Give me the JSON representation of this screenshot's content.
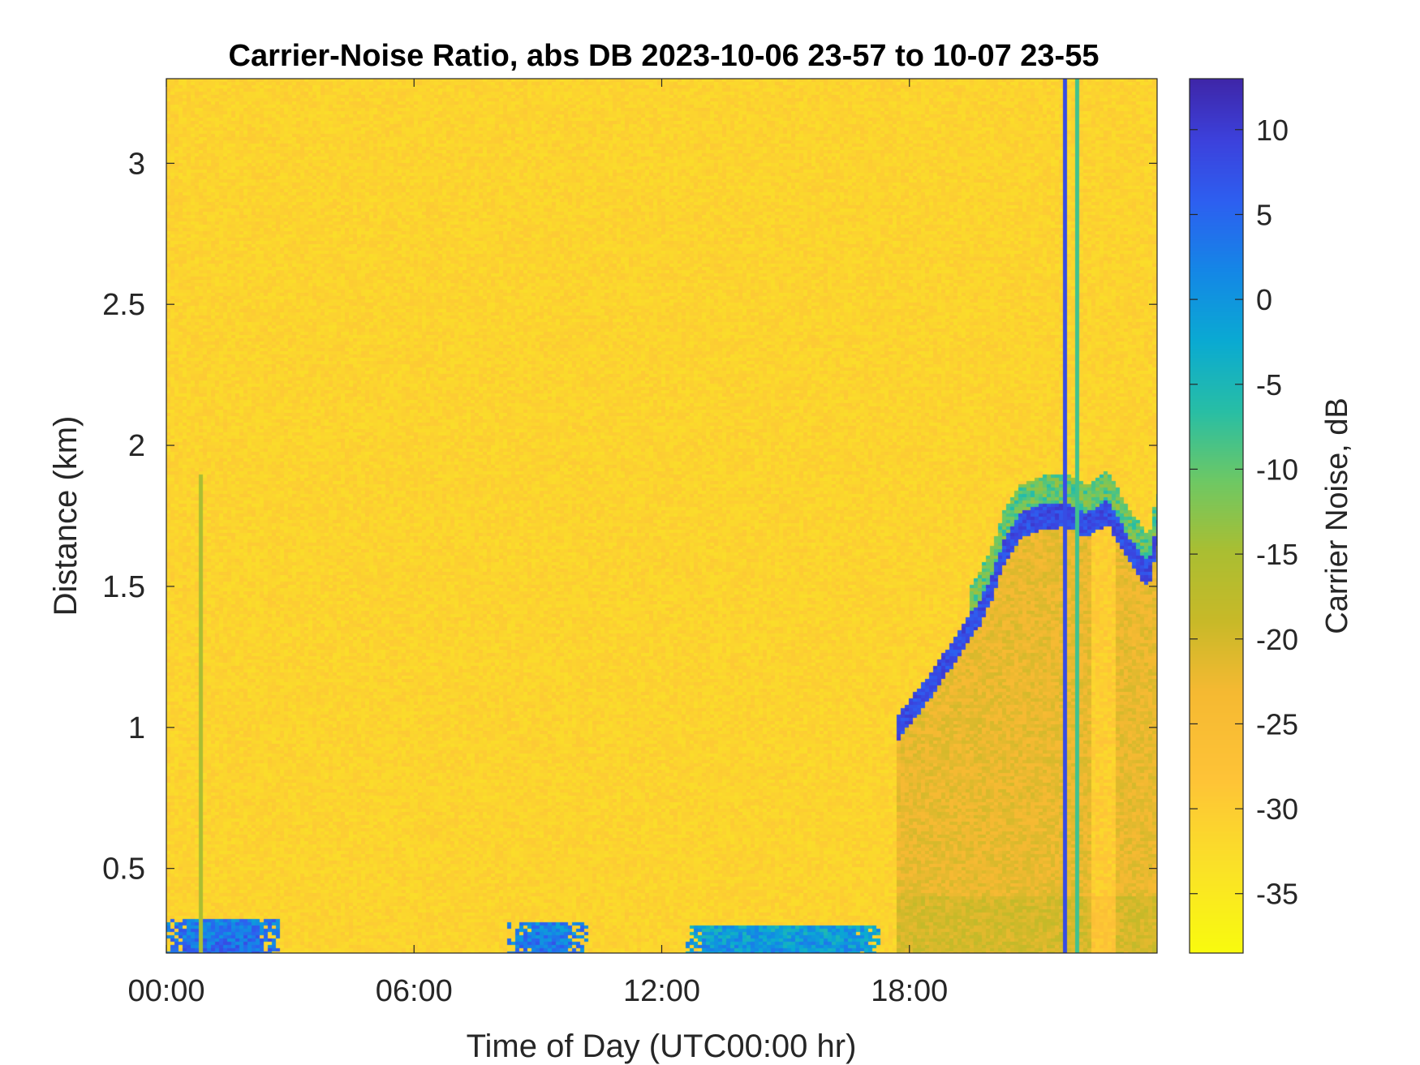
{
  "chart_data": {
    "type": "heatmap",
    "title": "Carrier-Noise Ratio, abs DB 2023-10-06 23-57 to 10-07 23-55",
    "xlabel": "Time of Day (UTC00:00 hr)",
    "ylabel": "Distance (km)",
    "colorbar_label": "Carrier Noise, dB",
    "xlim_hours": [
      0,
      24
    ],
    "ylim_km": [
      0.2,
      3.3
    ],
    "clim_db": [
      -38.5,
      13
    ],
    "x_ticks": [
      {
        "hour": 0,
        "label": "00:00"
      },
      {
        "hour": 6,
        "label": "06:00"
      },
      {
        "hour": 12,
        "label": "12:00"
      },
      {
        "hour": 18,
        "label": "18:00"
      }
    ],
    "y_ticks": [
      {
        "km": 0.5,
        "label": "0.5"
      },
      {
        "km": 1,
        "label": "1"
      },
      {
        "km": 1.5,
        "label": "1.5"
      },
      {
        "km": 2,
        "label": "2"
      },
      {
        "km": 2.5,
        "label": "2.5"
      },
      {
        "km": 3,
        "label": "3"
      }
    ],
    "colorbar_ticks": [
      {
        "db": 10,
        "label": "10"
      },
      {
        "db": 5,
        "label": "5"
      },
      {
        "db": 0,
        "label": "0"
      },
      {
        "db": -5,
        "label": "-5"
      },
      {
        "db": -10,
        "label": "-10"
      },
      {
        "db": -15,
        "label": "-15"
      },
      {
        "db": -20,
        "label": "-20"
      },
      {
        "db": -25,
        "label": "-25"
      },
      {
        "db": -30,
        "label": "-30"
      },
      {
        "db": -35,
        "label": "-35"
      }
    ],
    "colormap": "parula-reversed",
    "background_db": -31,
    "features": {
      "surface_layer": [
        {
          "t0": 0.0,
          "t1": 2.8,
          "top_km": 0.32,
          "db": 5
        },
        {
          "t0": 8.3,
          "t1": 10.2,
          "top_km": 0.31,
          "db": 4
        },
        {
          "t0": 12.6,
          "t1": 17.3,
          "top_km": 0.3,
          "db": 0
        }
      ],
      "boundary_layer_top": [
        {
          "hour": 17.7,
          "km": 1.02
        },
        {
          "hour": 18.5,
          "km": 1.17
        },
        {
          "hour": 19.2,
          "km": 1.32
        },
        {
          "hour": 19.7,
          "km": 1.43
        },
        {
          "hour": 20.0,
          "km": 1.52
        },
        {
          "hour": 20.3,
          "km": 1.65
        },
        {
          "hour": 20.7,
          "km": 1.74
        },
        {
          "hour": 21.2,
          "km": 1.77
        },
        {
          "hour": 21.8,
          "km": 1.78
        },
        {
          "hour": 22.3,
          "km": 1.74
        },
        {
          "hour": 22.8,
          "km": 1.79
        },
        {
          "hour": 23.3,
          "km": 1.66
        },
        {
          "hour": 23.8,
          "km": 1.56
        },
        {
          "hour": 24.0,
          "km": 1.71
        }
      ],
      "vertical_streaks": [
        {
          "hour": 0.85,
          "km_top": 1.9,
          "db": -15
        },
        {
          "hour": 21.8,
          "km_top": 3.3,
          "db": 8
        },
        {
          "hour": 22.1,
          "km_top": 3.3,
          "db": -8
        }
      ]
    }
  }
}
